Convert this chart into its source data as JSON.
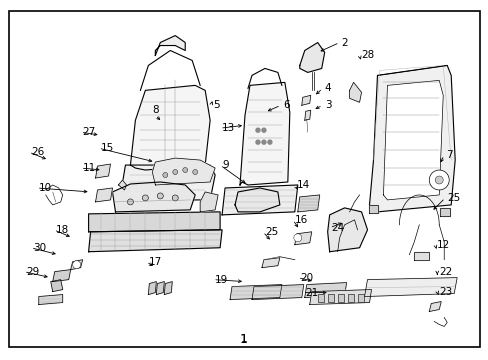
{
  "title": "1",
  "bg_color": "#ffffff",
  "border_color": "#000000",
  "text_color": "#000000",
  "fig_width": 4.89,
  "fig_height": 3.6,
  "dpi": 100,
  "label_fontsize": 7.5,
  "title_fontsize": 9
}
